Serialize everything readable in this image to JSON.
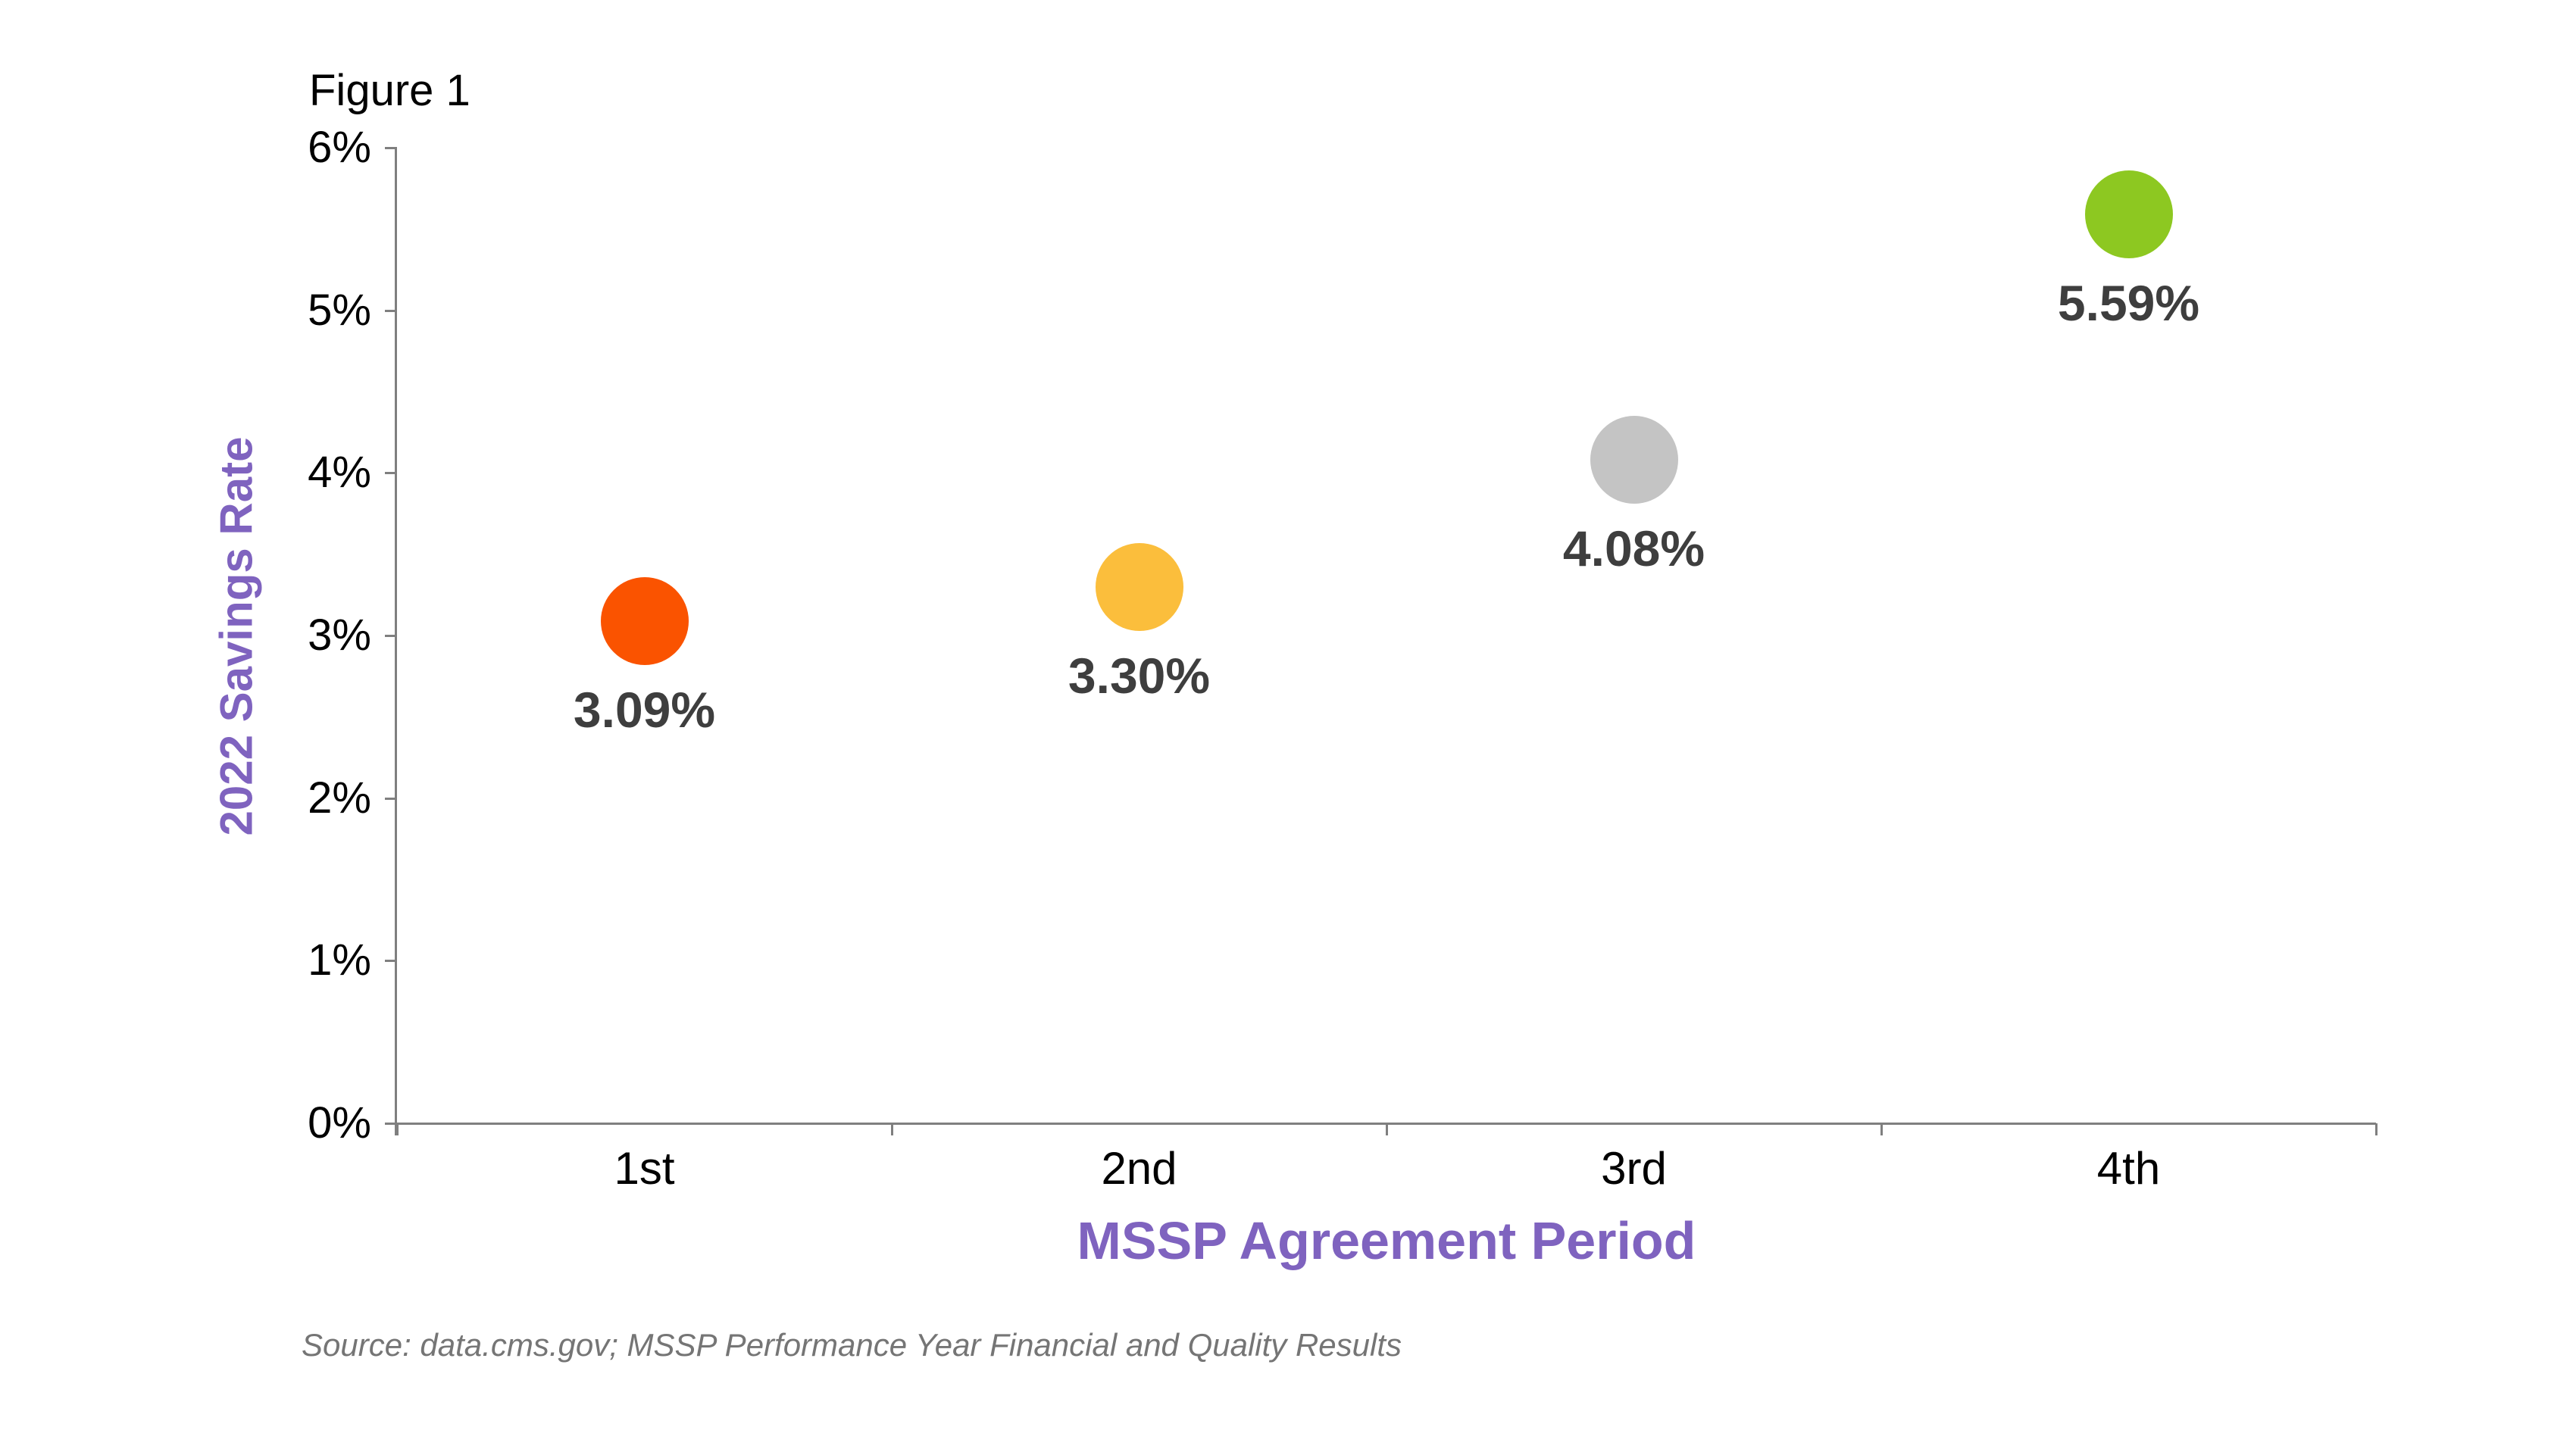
{
  "chart_data": {
    "type": "scatter",
    "title": "Figure 1",
    "xlabel": "MSSP Agreement Period",
    "ylabel": "2022 Savings Rate",
    "categories": [
      "1st",
      "2nd",
      "3rd",
      "4th"
    ],
    "series": [
      {
        "name": "2022 Savings Rate",
        "values": [
          3.09,
          3.3,
          4.08,
          5.59
        ],
        "point_labels": [
          "3.09%",
          "3.30%",
          "4.08%",
          "5.59%"
        ],
        "point_colors": [
          "#FA5300",
          "#FBBE3C",
          "#C4C4C4",
          "#8DC821"
        ]
      }
    ],
    "ylim": [
      0,
      6
    ],
    "y_tick_labels": [
      "0%",
      "1%",
      "2%",
      "3%",
      "4%",
      "5%",
      "6%"
    ],
    "grid": false,
    "legend": false
  },
  "source_note": "Source: data.cms.gov; MSSP Performance Year Financial and Quality Results",
  "style": {
    "background": "#FFFFFF",
    "axis_color": "#7F7F7F",
    "axis_title_color": "#7F63BF",
    "tick_label_color": "#000000",
    "data_label_color": "#3E3E3E",
    "source_color": "#757575"
  }
}
